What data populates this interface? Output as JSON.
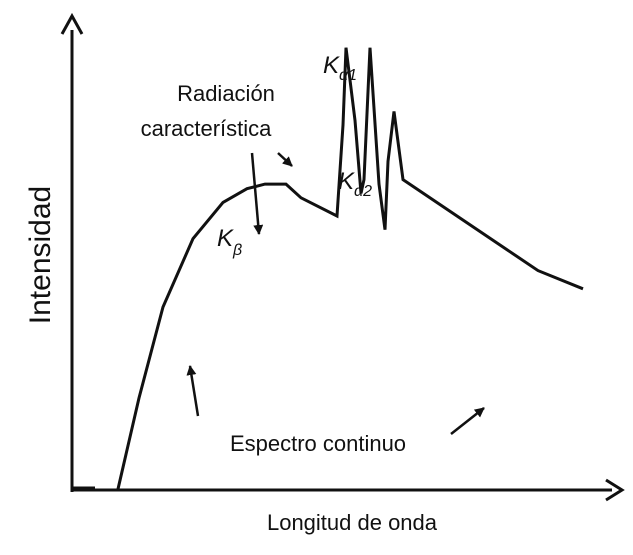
{
  "chart_data": {
    "type": "line",
    "title": "",
    "xlabel": "Longitud de onda",
    "ylabel": "Intensidad",
    "grid": false,
    "legend": "none",
    "ticks": "none",
    "series": [
      {
        "x": [
          0.0,
          0.07,
          0.15,
          0.25,
          0.35,
          0.43,
          0.49,
          0.53,
          0.56,
          0.61,
          0.73,
          0.75,
          0.76,
          0.79,
          0.81,
          0.82,
          0.84,
          0.87,
          0.89,
          0.9,
          0.92,
          0.95,
          1.4,
          1.55
        ],
        "y": [
          0.0,
          0.2,
          0.4,
          0.55,
          0.63,
          0.66,
          0.67,
          0.67,
          0.67,
          0.64,
          0.6,
          0.8,
          0.97,
          0.81,
          0.65,
          0.68,
          0.97,
          0.67,
          0.57,
          0.72,
          0.83,
          0.68,
          0.48,
          0.44
        ]
      }
    ],
    "peaks": [
      {
        "label": "K",
        "sub": "β"
      },
      {
        "label": "K",
        "sub": "α1"
      },
      {
        "label": "K",
        "sub": "α2"
      }
    ],
    "annotations": {
      "characteristic_line1": "Radiación",
      "characteristic_line2": "característica",
      "continuous": "Espectro continuo"
    }
  },
  "colors": {
    "line": "#111111",
    "background": "#ffffff"
  }
}
